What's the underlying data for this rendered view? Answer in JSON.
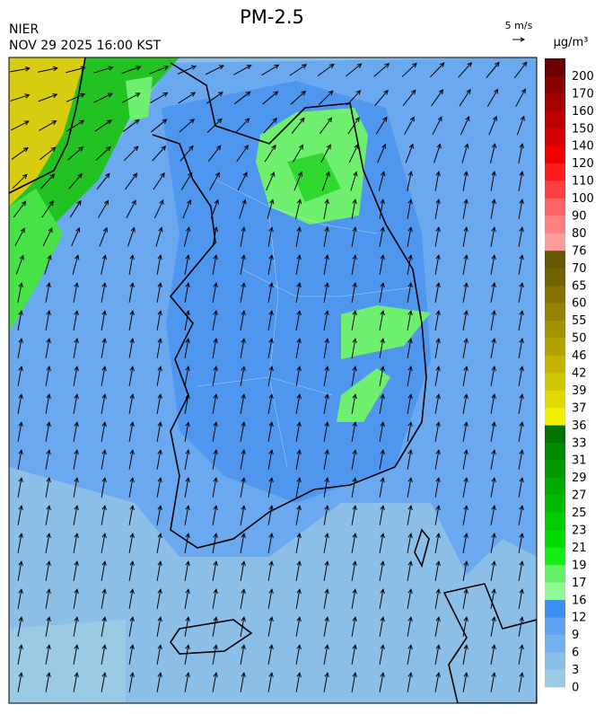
{
  "header": {
    "title": "PM-2.5",
    "agency": "NIER",
    "timestamp": "NOV 29 2025 16:00 KST",
    "wind_scale": "5 m/s"
  },
  "legend": {
    "unit": "μg/m³",
    "labels": [
      "0",
      "3",
      "6",
      "9",
      "12",
      "16",
      "17",
      "19",
      "21",
      "23",
      "25",
      "27",
      "29",
      "31",
      "33",
      "36",
      "37",
      "39",
      "42",
      "46",
      "50",
      "55",
      "60",
      "65",
      "70",
      "76",
      "80",
      "90",
      "100",
      "110",
      "120",
      "140",
      "150",
      "160",
      "170",
      "200"
    ],
    "colors": [
      "#9bcbe4",
      "#88c0ea",
      "#74b2ee",
      "#5fa3f0",
      "#3d8ff0",
      "#92f892",
      "#66f066",
      "#14ee14",
      "#00dc00",
      "#00cc00",
      "#00bb00",
      "#00aa00",
      "#009a00",
      "#008a00",
      "#007400",
      "#f0f000",
      "#e0d800",
      "#d0c600",
      "#c2b400",
      "#b2a200",
      "#a29200",
      "#928200",
      "#827200",
      "#726200",
      "#665800",
      "#ff9c9c",
      "#ff8080",
      "#ff6464",
      "#ff4040",
      "#ff1c1c",
      "#f20000",
      "#d80000",
      "#c00000",
      "#a40000",
      "#880000",
      "#6c0000"
    ]
  }
}
